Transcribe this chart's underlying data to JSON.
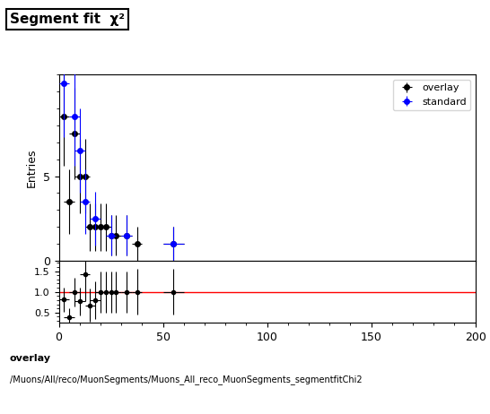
{
  "title": "Segment fit  χ²",
  "ylabel_main": "Entries",
  "xlim": [
    0,
    200
  ],
  "ylim_main": [
    0,
    11
  ],
  "ylim_ratio": [
    0.25,
    1.75
  ],
  "yticks_main": [
    0,
    5
  ],
  "yticks_ratio": [
    0.5,
    1.0,
    1.5
  ],
  "xticks": [
    0,
    50,
    100,
    150,
    200
  ],
  "overlay_x": [
    2.5,
    5.0,
    7.5,
    10.0,
    12.5,
    15.0,
    17.5,
    20.0,
    22.5,
    25.0,
    27.5,
    32.5,
    37.5,
    55.0
  ],
  "overlay_y": [
    8.5,
    3.5,
    7.5,
    5.0,
    5.0,
    2.0,
    2.0,
    2.0,
    2.0,
    1.5,
    1.5,
    1.5,
    1.0,
    1.0
  ],
  "overlay_yerr": [
    2.9,
    1.9,
    2.7,
    2.2,
    2.2,
    1.4,
    1.4,
    1.4,
    1.4,
    1.2,
    1.2,
    1.2,
    1.0,
    1.0
  ],
  "overlay_xerr": [
    2.5,
    2.5,
    2.5,
    2.5,
    2.5,
    2.5,
    2.5,
    2.5,
    2.5,
    2.5,
    2.5,
    2.5,
    2.5,
    5.0
  ],
  "standard_x": [
    2.5,
    7.5,
    10.0,
    12.5,
    17.5,
    25.0,
    32.5,
    55.0
  ],
  "standard_y": [
    10.5,
    8.5,
    6.5,
    3.5,
    2.5,
    1.5,
    1.5,
    1.0
  ],
  "standard_yerr": [
    3.2,
    2.9,
    2.5,
    1.9,
    1.6,
    1.2,
    1.2,
    1.0
  ],
  "standard_xerr": [
    2.5,
    2.5,
    2.5,
    2.5,
    2.5,
    2.5,
    2.5,
    5.0
  ],
  "ratio_x": [
    2.5,
    5.0,
    7.5,
    10.0,
    12.5,
    15.0,
    17.5,
    20.0,
    22.5,
    25.0,
    27.5,
    32.5,
    37.5,
    55.0
  ],
  "ratio_y": [
    0.81,
    0.39,
    1.0,
    0.77,
    1.43,
    0.67,
    0.8,
    1.0,
    1.0,
    1.0,
    1.0,
    1.0,
    1.0,
    1.0
  ],
  "ratio_yerr": [
    0.3,
    0.22,
    0.35,
    0.34,
    0.65,
    0.4,
    0.45,
    0.5,
    0.5,
    0.5,
    0.5,
    0.5,
    0.55,
    0.55
  ],
  "ratio_xerr": [
    2.5,
    2.5,
    2.5,
    2.5,
    2.5,
    2.5,
    2.5,
    2.5,
    2.5,
    2.5,
    2.5,
    2.5,
    2.5,
    5.0
  ],
  "overlay_color": "#000000",
  "standard_color": "#0000ff",
  "ratio_line_color": "#ff0000",
  "footer_line1": "overlay",
  "footer_line2": "/Muons/All/reco/MuonSegments/Muons_All_reco_MuonSegments_segmentfitChi2"
}
